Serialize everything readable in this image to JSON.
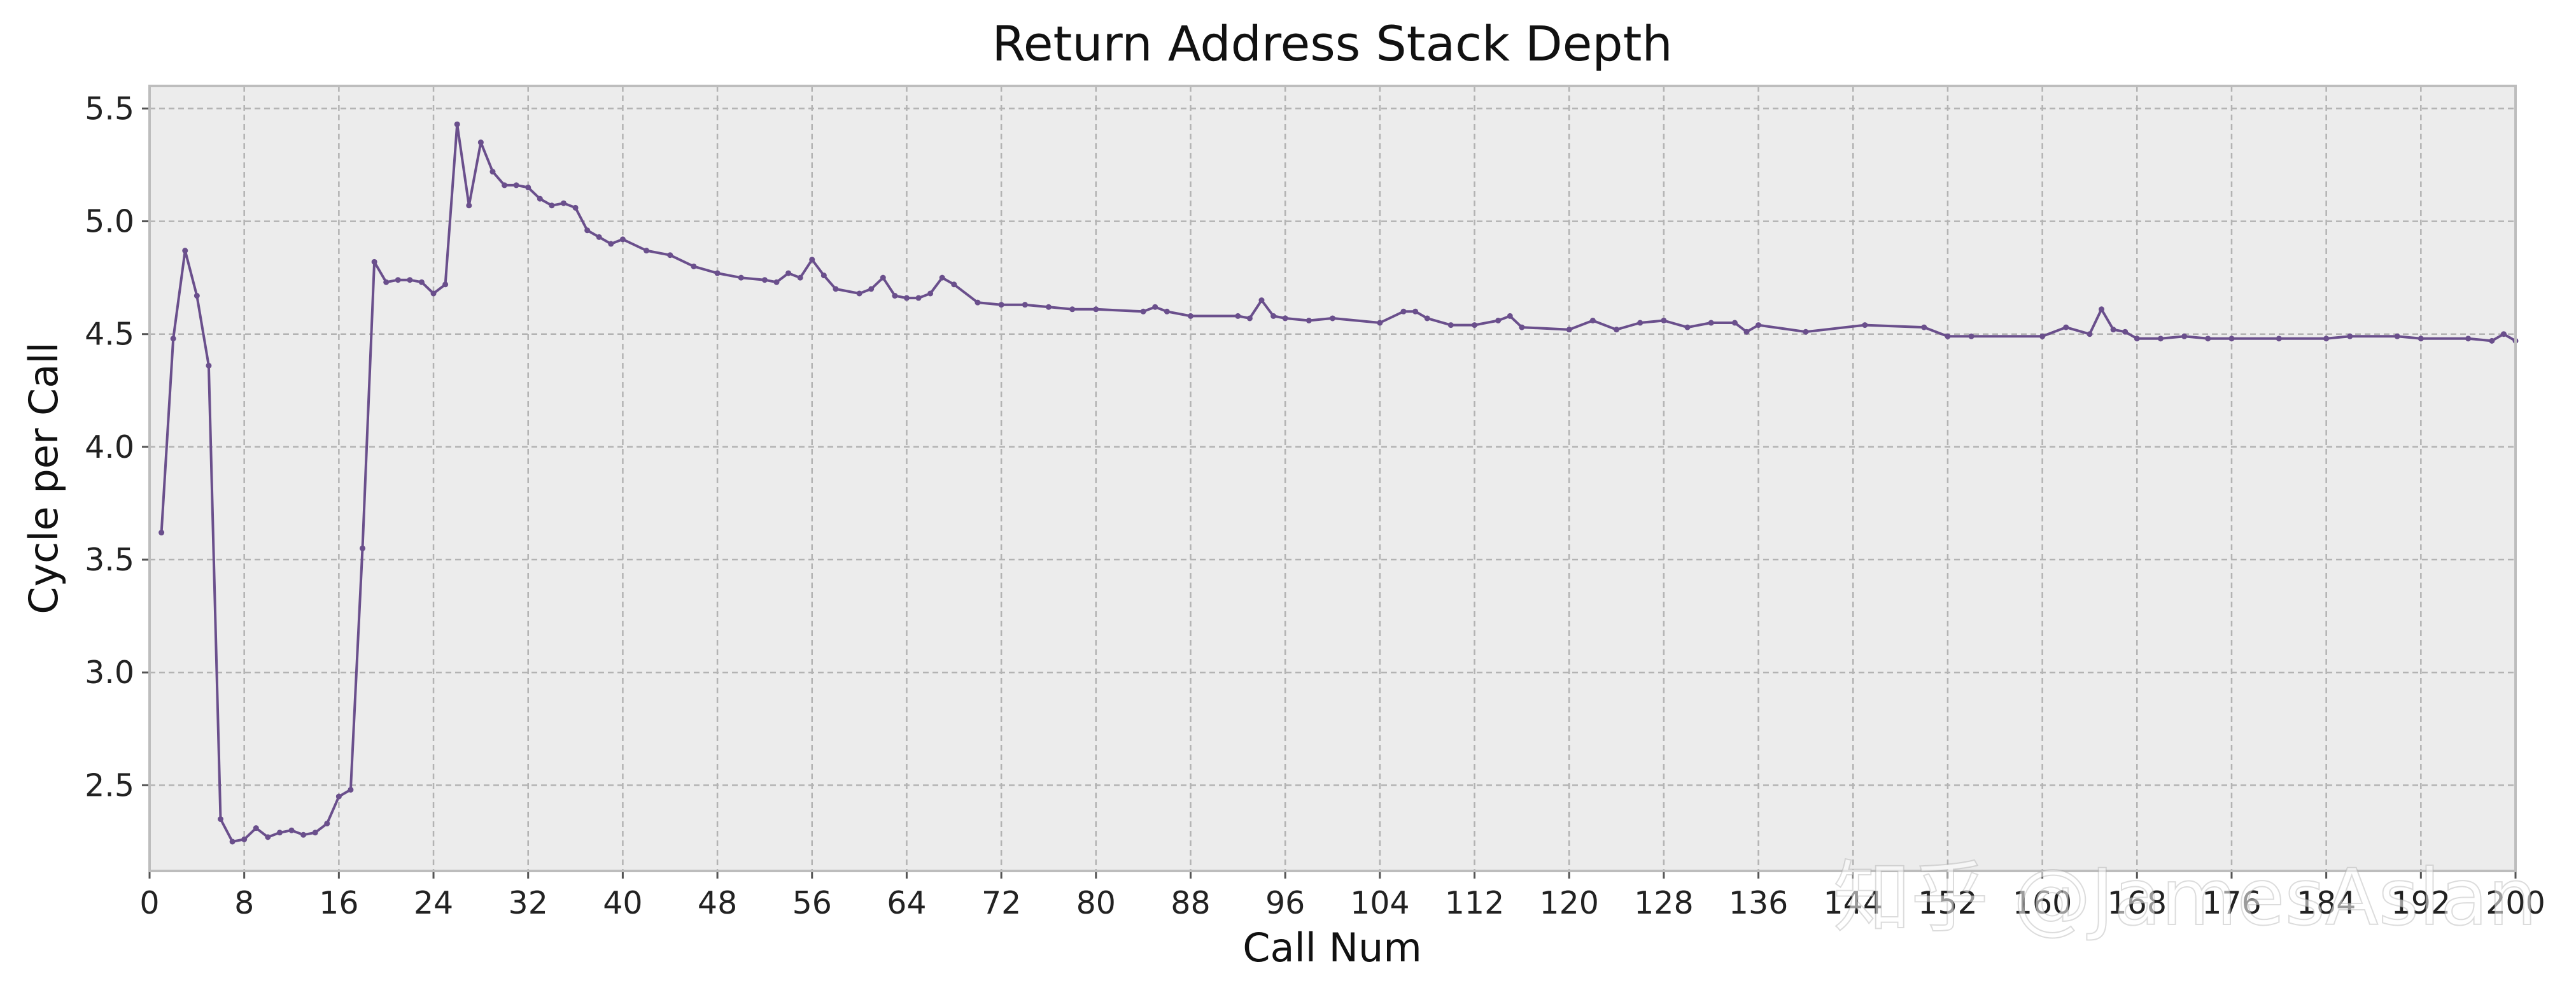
{
  "chart_data": {
    "type": "line",
    "title": "Return Address Stack Depth",
    "xlabel": "Call Num",
    "ylabel": "Cycle per Call",
    "xlim": [
      0,
      200
    ],
    "ylim": [
      2.12,
      5.6
    ],
    "xticks": [
      0,
      8,
      16,
      24,
      32,
      40,
      48,
      56,
      64,
      72,
      80,
      88,
      96,
      104,
      112,
      120,
      128,
      136,
      144,
      152,
      160,
      168,
      176,
      184,
      192,
      200
    ],
    "yticks": [
      2.5,
      3.0,
      3.5,
      4.0,
      4.5,
      5.0,
      5.5
    ],
    "ytick_labels": [
      "2.5",
      "3.0",
      "3.5",
      "4.0",
      "4.5",
      "5.0",
      "5.5"
    ],
    "grid": true,
    "line_color": "#6a4f8c",
    "background_color": "#ececec",
    "series": [
      {
        "x": [
          1,
          2,
          3,
          4,
          5,
          6,
          7,
          8,
          9,
          10,
          11,
          12,
          13,
          14,
          15,
          16,
          17,
          18,
          19,
          20,
          21,
          22,
          23,
          24,
          25,
          26,
          27,
          28,
          29,
          30,
          31,
          32,
          33,
          34,
          35,
          36,
          37,
          38,
          39,
          40,
          42,
          44,
          46,
          48,
          50,
          52,
          53,
          54,
          55,
          56,
          57,
          58,
          60,
          61,
          62,
          63,
          64,
          65,
          66,
          67,
          68,
          70,
          72,
          74,
          76,
          78,
          80,
          84,
          85,
          86,
          88,
          92,
          93,
          94,
          95,
          96,
          98,
          100,
          104,
          106,
          107,
          108,
          110,
          112,
          114,
          115,
          116,
          120,
          122,
          124,
          126,
          128,
          130,
          132,
          134,
          135,
          136,
          140,
          145,
          150,
          152,
          154,
          160,
          162,
          164,
          165,
          166,
          167,
          168,
          170,
          172,
          174,
          176,
          180,
          184,
          186,
          190,
          192,
          196,
          198,
          199,
          200
        ],
        "y": [
          3.62,
          4.48,
          4.87,
          4.67,
          4.36,
          2.35,
          2.25,
          2.26,
          2.31,
          2.27,
          2.29,
          2.3,
          2.28,
          2.29,
          2.33,
          2.45,
          2.48,
          3.55,
          4.82,
          4.73,
          4.74,
          4.74,
          4.73,
          4.68,
          4.72,
          5.43,
          5.07,
          5.35,
          5.22,
          5.16,
          5.16,
          5.15,
          5.1,
          5.07,
          5.08,
          5.06,
          4.96,
          4.93,
          4.9,
          4.92,
          4.87,
          4.85,
          4.8,
          4.77,
          4.75,
          4.74,
          4.73,
          4.77,
          4.75,
          4.83,
          4.76,
          4.7,
          4.68,
          4.7,
          4.75,
          4.67,
          4.66,
          4.66,
          4.68,
          4.75,
          4.72,
          4.64,
          4.63,
          4.63,
          4.62,
          4.61,
          4.61,
          4.6,
          4.62,
          4.6,
          4.58,
          4.58,
          4.57,
          4.65,
          4.58,
          4.57,
          4.56,
          4.57,
          4.55,
          4.6,
          4.6,
          4.57,
          4.54,
          4.54,
          4.56,
          4.58,
          4.53,
          4.52,
          4.56,
          4.52,
          4.55,
          4.56,
          4.53,
          4.55,
          4.55,
          4.51,
          4.54,
          4.51,
          4.54,
          4.53,
          4.49,
          4.49,
          4.49,
          4.53,
          4.5,
          4.61,
          4.52,
          4.51,
          4.48,
          4.48,
          4.49,
          4.48,
          4.48,
          4.48,
          4.48,
          4.49,
          4.49,
          4.48,
          4.48,
          4.47,
          4.5,
          4.47
        ]
      }
    ]
  },
  "watermark": {
    "text": "知乎 @JamesAslan"
  }
}
